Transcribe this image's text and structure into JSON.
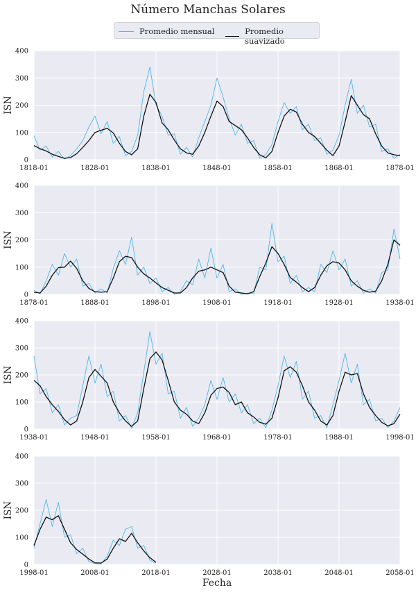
{
  "title": "Número Manchas Solares",
  "legend": [
    {
      "label": "Promedio mensual",
      "color": "#4db8e8"
    },
    {
      "label": "Promedio suavizado",
      "color": "#111111"
    }
  ],
  "xlabel": "Fecha",
  "colors": {
    "background": "#eaeaf2",
    "grid": "#ffffff",
    "monthly": "#4db8e8",
    "smoothed": "#111111"
  },
  "chart_data": [
    {
      "type": "line",
      "ylabel": "ISN",
      "ylim": [
        0,
        400
      ],
      "yticks": [
        0,
        100,
        200,
        300,
        400
      ],
      "xlim": [
        "1818-01",
        "1878-01"
      ],
      "xticks": [
        "1818-01",
        "1828-01",
        "1838-01",
        "1848-01",
        "1858-01",
        "1868-01",
        "1878-01"
      ],
      "grid": true,
      "series": [
        {
          "name": "Promedio suavizado",
          "x": [
            1818,
            1819,
            1820,
            1821,
            1822,
            1823,
            1824,
            1825,
            1826,
            1827,
            1828,
            1829,
            1830,
            1831,
            1832,
            1833,
            1834,
            1835,
            1836,
            1837,
            1838,
            1839,
            1840,
            1841,
            1842,
            1843,
            1844,
            1845,
            1846,
            1847,
            1848,
            1849,
            1850,
            1851,
            1852,
            1853,
            1854,
            1855,
            1856,
            1857,
            1858,
            1859,
            1860,
            1861,
            1862,
            1863,
            1864,
            1865,
            1866,
            1867,
            1868,
            1869,
            1870,
            1871,
            1872,
            1873,
            1874,
            1875,
            1876,
            1877,
            1878
          ],
          "y": [
            52,
            40,
            32,
            20,
            12,
            5,
            8,
            22,
            45,
            70,
            100,
            108,
            115,
            98,
            60,
            30,
            18,
            40,
            160,
            240,
            210,
            135,
            110,
            72,
            40,
            25,
            20,
            50,
            100,
            160,
            215,
            195,
            140,
            125,
            110,
            80,
            45,
            18,
            7,
            30,
            100,
            160,
            185,
            175,
            130,
            100,
            85,
            60,
            35,
            15,
            50,
            140,
            235,
            200,
            165,
            150,
            95,
            50,
            25,
            18,
            15
          ]
        },
        {
          "name": "Promedio mensual",
          "x": [
            1818,
            1819,
            1820,
            1821,
            1822,
            1823,
            1824,
            1825,
            1826,
            1827,
            1828,
            1829,
            1830,
            1831,
            1832,
            1833,
            1834,
            1835,
            1836,
            1837,
            1838,
            1839,
            1840,
            1841,
            1842,
            1843,
            1844,
            1845,
            1846,
            1847,
            1848,
            1849,
            1850,
            1851,
            1852,
            1853,
            1854,
            1855,
            1856,
            1857,
            1858,
            1859,
            1860,
            1861,
            1862,
            1863,
            1864,
            1865,
            1866,
            1867,
            1868,
            1869,
            1870,
            1871,
            1872,
            1873,
            1874,
            1875,
            1876,
            1877,
            1878
          ],
          "y": [
            88,
            35,
            50,
            10,
            30,
            2,
            15,
            40,
            70,
            120,
            160,
            95,
            140,
            60,
            85,
            15,
            30,
            90,
            250,
            340,
            200,
            160,
            90,
            95,
            20,
            45,
            10,
            80,
            140,
            200,
            300,
            230,
            150,
            90,
            130,
            60,
            70,
            5,
            20,
            55,
            140,
            210,
            170,
            195,
            110,
            130,
            70,
            80,
            20,
            35,
            90,
            200,
            295,
            170,
            200,
            120,
            130,
            30,
            40,
            5,
            20
          ]
        }
      ]
    },
    {
      "type": "line",
      "ylabel": "ISN",
      "ylim": [
        0,
        400
      ],
      "yticks": [
        0,
        100,
        200,
        300,
        400
      ],
      "xlim": [
        "1878-01",
        "1938-01"
      ],
      "xticks": [
        "1878-01",
        "1888-01",
        "1898-01",
        "1908-01",
        "1918-01",
        "1928-01",
        "1938-01"
      ],
      "grid": true,
      "series": [
        {
          "name": "Promedio suavizado",
          "x": [
            1878,
            1879,
            1880,
            1881,
            1882,
            1883,
            1884,
            1885,
            1886,
            1887,
            1888,
            1889,
            1890,
            1891,
            1892,
            1893,
            1894,
            1895,
            1896,
            1897,
            1898,
            1899,
            1900,
            1901,
            1902,
            1903,
            1904,
            1905,
            1906,
            1907,
            1908,
            1909,
            1910,
            1911,
            1912,
            1913,
            1914,
            1915,
            1916,
            1917,
            1918,
            1919,
            1920,
            1921,
            1922,
            1923,
            1924,
            1925,
            1926,
            1927,
            1928,
            1929,
            1930,
            1931,
            1932,
            1933,
            1934,
            1935,
            1936,
            1937,
            1938
          ],
          "y": [
            8,
            5,
            30,
            70,
            98,
            100,
            122,
            95,
            50,
            22,
            10,
            8,
            10,
            60,
            120,
            140,
            135,
            100,
            75,
            60,
            42,
            25,
            15,
            5,
            5,
            25,
            60,
            85,
            90,
            100,
            90,
            80,
            30,
            8,
            5,
            2,
            10,
            65,
            115,
            175,
            150,
            110,
            62,
            45,
            25,
            10,
            25,
            70,
            105,
            120,
            115,
            90,
            50,
            30,
            15,
            8,
            12,
            50,
            110,
            200,
            180
          ]
        },
        {
          "name": "Promedio mensual",
          "x": [
            1878,
            1879,
            1880,
            1881,
            1882,
            1883,
            1884,
            1885,
            1886,
            1887,
            1888,
            1889,
            1890,
            1891,
            1892,
            1893,
            1894,
            1895,
            1896,
            1897,
            1898,
            1899,
            1900,
            1901,
            1902,
            1903,
            1904,
            1905,
            1906,
            1907,
            1908,
            1909,
            1910,
            1911,
            1912,
            1913,
            1914,
            1915,
            1916,
            1917,
            1918,
            1919,
            1920,
            1921,
            1922,
            1923,
            1924,
            1925,
            1926,
            1927,
            1928,
            1929,
            1930,
            1931,
            1932,
            1933,
            1934,
            1935,
            1936,
            1937,
            1938
          ],
          "y": [
            15,
            2,
            50,
            110,
            70,
            150,
            100,
            130,
            30,
            40,
            5,
            20,
            5,
            95,
            160,
            110,
            210,
            70,
            100,
            40,
            60,
            10,
            25,
            0,
            10,
            50,
            35,
            130,
            60,
            170,
            60,
            110,
            10,
            20,
            0,
            5,
            2,
            100,
            90,
            260,
            120,
            140,
            40,
            70,
            10,
            25,
            10,
            110,
            80,
            160,
            90,
            130,
            30,
            50,
            5,
            20,
            5,
            80,
            90,
            240,
            130
          ]
        }
      ]
    },
    {
      "type": "line",
      "ylabel": "ISN",
      "ylim": [
        0,
        400
      ],
      "yticks": [
        0,
        100,
        200,
        300,
        400
      ],
      "xlim": [
        "1938-01",
        "1998-01"
      ],
      "xticks": [
        "1938-01",
        "1948-01",
        "1958-01",
        "1968-01",
        "1978-01",
        "1988-01",
        "1998-01"
      ],
      "grid": true,
      "series": [
        {
          "name": "Promedio suavizado",
          "x": [
            1938,
            1939,
            1940,
            1941,
            1942,
            1943,
            1944,
            1945,
            1946,
            1947,
            1948,
            1949,
            1950,
            1951,
            1952,
            1953,
            1954,
            1955,
            1956,
            1957,
            1958,
            1959,
            1960,
            1961,
            1962,
            1963,
            1964,
            1965,
            1966,
            1967,
            1968,
            1969,
            1970,
            1971,
            1972,
            1973,
            1974,
            1975,
            1976,
            1977,
            1978,
            1979,
            1980,
            1981,
            1982,
            1983,
            1984,
            1985,
            1986,
            1987,
            1988,
            1989,
            1990,
            1991,
            1992,
            1993,
            1994,
            1995,
            1996,
            1997,
            1998
          ],
          "y": [
            180,
            160,
            120,
            90,
            65,
            35,
            15,
            30,
            100,
            190,
            220,
            195,
            170,
            100,
            60,
            30,
            10,
            30,
            150,
            260,
            285,
            255,
            180,
            100,
            70,
            55,
            30,
            20,
            60,
            125,
            150,
            155,
            135,
            90,
            100,
            60,
            45,
            25,
            18,
            40,
            115,
            215,
            230,
            210,
            160,
            100,
            70,
            30,
            15,
            50,
            140,
            210,
            200,
            205,
            130,
            80,
            50,
            25,
            12,
            20,
            55
          ]
        },
        {
          "name": "Promedio mensual",
          "x": [
            1938,
            1939,
            1940,
            1941,
            1942,
            1943,
            1944,
            1945,
            1946,
            1947,
            1948,
            1949,
            1950,
            1951,
            1952,
            1953,
            1954,
            1955,
            1956,
            1957,
            1958,
            1959,
            1960,
            1961,
            1962,
            1963,
            1964,
            1965,
            1966,
            1967,
            1968,
            1969,
            1970,
            1971,
            1972,
            1973,
            1974,
            1975,
            1976,
            1977,
            1978,
            1979,
            1980,
            1981,
            1982,
            1983,
            1984,
            1985,
            1986,
            1987,
            1988,
            1989,
            1990,
            1991,
            1992,
            1993,
            1994,
            1995,
            1996,
            1997,
            1998
          ],
          "y": [
            270,
            130,
            150,
            60,
            90,
            15,
            40,
            50,
            160,
            270,
            170,
            240,
            120,
            140,
            30,
            50,
            2,
            60,
            210,
            360,
            240,
            280,
            130,
            140,
            40,
            80,
            10,
            40,
            90,
            180,
            110,
            190,
            100,
            130,
            60,
            90,
            20,
            40,
            5,
            70,
            160,
            270,
            190,
            250,
            110,
            140,
            40,
            50,
            5,
            90,
            180,
            280,
            170,
            240,
            90,
            110,
            30,
            40,
            5,
            30,
            80
          ]
        }
      ]
    },
    {
      "type": "line",
      "ylabel": "ISN",
      "ylim": [
        0,
        400
      ],
      "yticks": [
        0,
        100,
        200,
        300,
        400
      ],
      "xlim": [
        "1998-01",
        "2058-01"
      ],
      "xticks": [
        "1998-01",
        "2008-01",
        "2018-01",
        "2028-01",
        "2038-01",
        "2048-01",
        "2058-01"
      ],
      "grid": true,
      "series": [
        {
          "name": "Promedio suavizado",
          "x": [
            1998,
            1999,
            2000,
            2001,
            2002,
            2003,
            2004,
            2005,
            2006,
            2007,
            2008,
            2009,
            2010,
            2011,
            2012,
            2013,
            2014,
            2015,
            2016,
            2017,
            2018
          ],
          "y": [
            70,
            130,
            175,
            165,
            180,
            130,
            80,
            55,
            38,
            20,
            6,
            5,
            20,
            60,
            95,
            85,
            115,
            80,
            50,
            25,
            8
          ]
        },
        {
          "name": "Promedio mensual",
          "x": [
            1998,
            1999,
            2000,
            2001,
            2002,
            2003,
            2004,
            2005,
            2006,
            2007,
            2008,
            2009,
            2010,
            2011,
            2012,
            2013,
            2014,
            2015,
            2016,
            2017,
            2018
          ],
          "y": [
            60,
            150,
            240,
            140,
            230,
            100,
            110,
            40,
            60,
            10,
            3,
            2,
            30,
            90,
            70,
            130,
            140,
            60,
            70,
            15,
            5
          ]
        }
      ]
    }
  ]
}
